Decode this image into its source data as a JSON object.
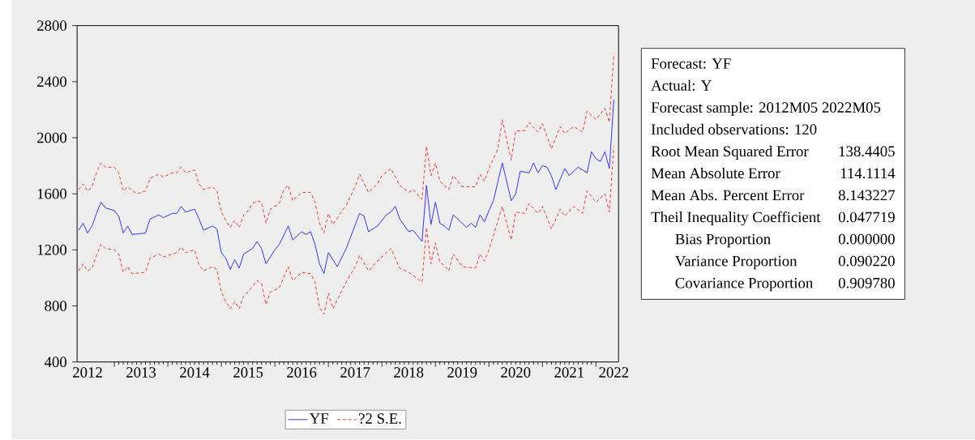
{
  "chart_data": {
    "type": "line",
    "xlim": [
      "2012-04-21",
      "2022-06-03"
    ],
    "ylim": [
      400,
      2800
    ],
    "yticks": [
      400,
      800,
      1200,
      1600,
      2000,
      2400,
      2800
    ],
    "xticks": [
      {
        "value": "2013-01",
        "label": null
      },
      {
        "value": "2014-01",
        "label": null
      },
      {
        "value": "2015-01",
        "label": null
      },
      {
        "value": "2016-01",
        "label": null
      },
      {
        "value": "2017-01",
        "label": null
      },
      {
        "value": "2018-01",
        "label": null
      },
      {
        "value": "2019-01",
        "label": null
      },
      {
        "value": "2020-01",
        "label": null
      },
      {
        "value": "2021-01",
        "label": null
      },
      {
        "value": "2022-01",
        "label": null
      },
      {
        "value": "2012-07-01",
        "label": "2012"
      },
      {
        "value": "2013-07-01",
        "label": "2013"
      },
      {
        "value": "2014-07-01",
        "label": "2014"
      },
      {
        "value": "2015-07-01",
        "label": "2015"
      },
      {
        "value": "2016-07-01",
        "label": "2016"
      },
      {
        "value": "2017-07-01",
        "label": "2017"
      },
      {
        "value": "2018-07-01",
        "label": "2018"
      },
      {
        "value": "2019-07-01",
        "label": "2019"
      },
      {
        "value": "2020-07-01",
        "label": "2020"
      },
      {
        "value": "2021-07-01",
        "label": "2021"
      },
      {
        "value": "2022-05-01",
        "label": "2022"
      }
    ],
    "legend": "bottom",
    "marker": "none",
    "series": [
      {
        "name": "YF",
        "color": "#3232ff",
        "line_style": "solid",
        "x": [
          "2012-05",
          "2012-06",
          "2012-07",
          "2012-08",
          "2012-09",
          "2012-10",
          "2012-11",
          "2013-01",
          "2013-02",
          "2013-03",
          "2013-04",
          "2013-05",
          "2013-08",
          "2013-09",
          "2013-11",
          "2013-12",
          "2014-02",
          "2014-03",
          "2014-04",
          "2014-05",
          "2014-07",
          "2014-08",
          "2014-09",
          "2014-11",
          "2014-12",
          "2015-01",
          "2015-02",
          "2015-03",
          "2015-04",
          "2015-05",
          "2015-06",
          "2015-07",
          "2015-08",
          "2015-09",
          "2015-10",
          "2015-11",
          "2016-01",
          "2016-02",
          "2016-04",
          "2016-05",
          "2016-07",
          "2016-08",
          "2016-09",
          "2016-10",
          "2016-11",
          "2016-12",
          "2017-01",
          "2017-03",
          "2017-05",
          "2017-08",
          "2017-09",
          "2017-10",
          "2017-12",
          "2018-02",
          "2018-03",
          "2018-04",
          "2018-05",
          "2018-07",
          "2018-08",
          "2018-10",
          "2018-11",
          "2018-12",
          "2019-01",
          "2019-02",
          "2019-03",
          "2019-04",
          "2019-05",
          "2019-06",
          "2019-08",
          "2019-09",
          "2019-10",
          "2019-11",
          "2019-12",
          "2020-01",
          "2020-02",
          "2020-04",
          "2020-06",
          "2020-07",
          "2020-08",
          "2020-10",
          "2020-11",
          "2020-12",
          "2021-01",
          "2021-02",
          "2021-03",
          "2021-04",
          "2021-06",
          "2021-07",
          "2021-09",
          "2021-11",
          "2021-12",
          "2022-01",
          "2022-02",
          "2022-03",
          "2022-04",
          "2022-05"
        ],
        "values": [
          1340,
          1390,
          1320,
          1370,
          1460,
          1540,
          1500,
          1480,
          1440,
          1320,
          1370,
          1310,
          1320,
          1420,
          1450,
          1430,
          1460,
          1460,
          1510,
          1470,
          1490,
          1420,
          1340,
          1370,
          1350,
          1180,
          1140,
          1060,
          1130,
          1070,
          1170,
          1190,
          1210,
          1260,
          1210,
          1100,
          1200,
          1240,
          1370,
          1270,
          1330,
          1310,
          1330,
          1240,
          1100,
          1030,
          1180,
          1080,
          1210,
          1460,
          1440,
          1330,
          1370,
          1450,
          1470,
          1510,
          1420,
          1330,
          1340,
          1260,
          1660,
          1380,
          1540,
          1390,
          1370,
          1340,
          1450,
          1420,
          1360,
          1390,
          1360,
          1450,
          1400,
          1480,
          1550,
          1820,
          1550,
          1600,
          1760,
          1750,
          1820,
          1750,
          1800,
          1790,
          1730,
          1630,
          1780,
          1730,
          1790,
          1750,
          1900,
          1850,
          1830,
          1900,
          1780,
          2270
        ]
      },
      {
        "name": "?2 S.E.",
        "color": "#ff3232",
        "line_style": "dashed",
        "x": [
          "2012-05",
          "2012-06",
          "2012-07",
          "2012-08",
          "2012-09",
          "2012-10",
          "2012-11",
          "2013-01",
          "2013-02",
          "2013-03",
          "2013-04",
          "2013-06",
          "2013-08",
          "2013-09",
          "2013-11",
          "2013-12",
          "2014-02",
          "2014-03",
          "2014-04",
          "2014-05",
          "2014-07",
          "2014-08",
          "2014-09",
          "2014-11",
          "2014-12",
          "2015-01",
          "2015-02",
          "2015-03",
          "2015-04",
          "2015-05",
          "2015-06",
          "2015-07",
          "2015-08",
          "2015-09",
          "2015-10",
          "2015-11",
          "2015-12",
          "2016-02",
          "2016-03",
          "2016-04",
          "2016-05",
          "2016-07",
          "2016-09",
          "2016-10",
          "2016-11",
          "2016-12",
          "2017-01",
          "2017-02",
          "2017-05",
          "2017-07",
          "2017-08",
          "2017-10",
          "2017-12",
          "2018-01",
          "2018-03",
          "2018-05",
          "2018-07",
          "2018-08",
          "2018-10",
          "2018-11",
          "2018-12",
          "2019-01",
          "2019-02",
          "2019-03",
          "2019-04",
          "2019-05",
          "2019-07",
          "2019-10",
          "2019-11",
          "2019-12",
          "2020-01",
          "2020-03",
          "2020-04",
          "2020-06",
          "2020-07",
          "2020-09",
          "2020-10",
          "2020-12",
          "2021-01",
          "2021-03",
          "2021-05",
          "2021-06",
          "2021-08",
          "2021-10",
          "2021-11",
          "2022-01",
          "2022-03",
          "2022-04",
          "2022-05"
        ],
        "values": [
          1630,
          1670,
          1620,
          1650,
          1750,
          1820,
          1790,
          1790,
          1750,
          1620,
          1650,
          1600,
          1620,
          1710,
          1740,
          1720,
          1750,
          1750,
          1790,
          1750,
          1770,
          1670,
          1630,
          1650,
          1620,
          1470,
          1410,
          1360,
          1410,
          1360,
          1450,
          1480,
          1530,
          1550,
          1540,
          1390,
          1490,
          1530,
          1630,
          1660,
          1550,
          1610,
          1610,
          1540,
          1390,
          1320,
          1460,
          1380,
          1520,
          1650,
          1740,
          1610,
          1670,
          1730,
          1780,
          1660,
          1610,
          1630,
          1560,
          1940,
          1730,
          1820,
          1690,
          1660,
          1630,
          1730,
          1650,
          1650,
          1740,
          1690,
          1780,
          1920,
          2130,
          1840,
          2050,
          2050,
          2110,
          2040,
          2100,
          1920,
          2080,
          2030,
          2080,
          2040,
          2190,
          2130,
          2210,
          2110,
          2600
        ]
      },
      {
        "color": "#ff3232",
        "line_style": "dashed",
        "x": [
          "2012-05",
          "2012-06",
          "2012-07",
          "2012-08",
          "2012-09",
          "2012-10",
          "2012-11",
          "2013-01",
          "2013-02",
          "2013-03",
          "2013-04",
          "2013-05",
          "2013-08",
          "2013-09",
          "2013-11",
          "2013-12",
          "2014-02",
          "2014-03",
          "2014-04",
          "2014-05",
          "2014-07",
          "2014-08",
          "2014-09",
          "2014-11",
          "2014-12",
          "2015-01",
          "2015-02",
          "2015-03",
          "2015-04",
          "2015-05",
          "2015-06",
          "2015-07",
          "2015-08",
          "2015-09",
          "2015-10",
          "2015-11",
          "2015-12",
          "2016-02",
          "2016-04",
          "2016-05",
          "2016-07",
          "2016-09",
          "2016-10",
          "2016-11",
          "2016-12",
          "2017-01",
          "2017-02",
          "2017-05",
          "2017-07",
          "2017-08",
          "2017-10",
          "2017-12",
          "2018-01",
          "2018-03",
          "2018-05",
          "2018-07",
          "2018-10",
          "2018-11",
          "2018-12",
          "2019-01",
          "2019-02",
          "2019-03",
          "2019-04",
          "2019-05",
          "2019-07",
          "2019-10",
          "2019-11",
          "2019-12",
          "2020-01",
          "2020-04",
          "2020-06",
          "2020-07",
          "2020-09",
          "2020-10",
          "2020-12",
          "2021-01",
          "2021-03",
          "2021-05",
          "2021-06",
          "2021-08",
          "2021-10",
          "2021-11",
          "2022-01",
          "2022-03",
          "2022-04",
          "2022-05"
        ],
        "values": [
          1050,
          1100,
          1050,
          1070,
          1160,
          1240,
          1210,
          1200,
          1170,
          1040,
          1080,
          1030,
          1040,
          1140,
          1170,
          1150,
          1170,
          1180,
          1220,
          1180,
          1200,
          1090,
          1050,
          1080,
          1060,
          900,
          830,
          780,
          830,
          780,
          870,
          900,
          940,
          980,
          960,
          810,
          900,
          930,
          1080,
          980,
          1040,
          1030,
          970,
          790,
          740,
          890,
          780,
          970,
          1080,
          1160,
          1050,
          1120,
          1150,
          1210,
          1070,
          1040,
          970,
          1360,
          1100,
          1250,
          1110,
          1090,
          1050,
          1170,
          1080,
          1070,
          1170,
          1120,
          1200,
          1510,
          1270,
          1470,
          1460,
          1530,
          1460,
          1510,
          1350,
          1490,
          1440,
          1510,
          1460,
          1620,
          1540,
          1600,
          1470,
          1940
        ]
      }
    ],
    "annotations": [
      "Forecast: YF",
      "Actual: Y",
      "Forecast sample: 2012M05  2022M05",
      "Included observations: 120",
      "Root Mean Squared Error",
      "138.4405",
      "Mean Absolute Error",
      "114.1114",
      "Mean Abs. Percent Error",
      "8.143227",
      "Theil Inequality Coefficient",
      "0.047719",
      "Bias Proportion",
      "0.000000",
      "Variance Proportion",
      "0.090220",
      "Covariance Proportion",
      "0.909780"
    ]
  }
}
